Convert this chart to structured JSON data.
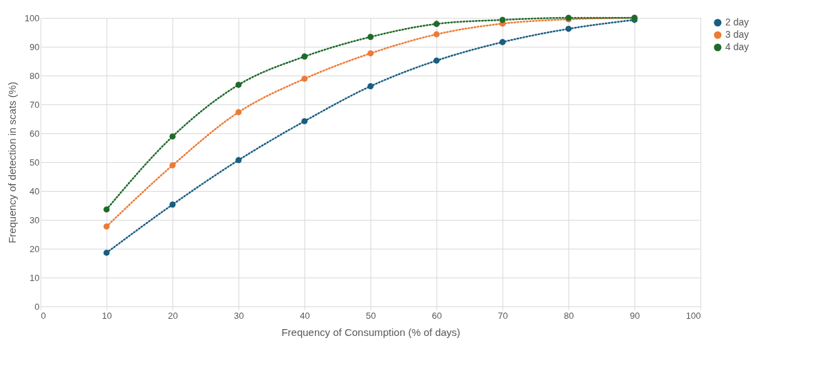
{
  "chart_data": {
    "type": "line",
    "xlabel": "Frequency of Consumption (% of days)",
    "ylabel": "Frequency of detection in scats (%)",
    "x": [
      10,
      20,
      30,
      40,
      50,
      60,
      70,
      80,
      90
    ],
    "series": [
      {
        "name": "2 day",
        "color": "#1a5e82",
        "values": [
          18.6,
          35.3,
          50.7,
          64.2,
          76.3,
          85.2,
          91.6,
          96.2,
          99.3
        ]
      },
      {
        "name": "3 day",
        "color": "#ed7a35",
        "values": [
          27.7,
          48.9,
          67.3,
          78.9,
          87.7,
          94.3,
          98,
          99.5,
          100
        ]
      },
      {
        "name": "4 day",
        "color": "#1e6b2a",
        "values": [
          33.6,
          58.9,
          76.8,
          86.6,
          93.4,
          97.9,
          99.3,
          100,
          100
        ]
      }
    ],
    "xlim": [
      0,
      100
    ],
    "xticks": [
      0,
      10,
      20,
      30,
      40,
      50,
      60,
      70,
      80,
      90,
      100
    ],
    "ylim": [
      0,
      100
    ],
    "yticks": [
      0,
      10,
      20,
      30,
      40,
      50,
      60,
      70,
      80,
      90,
      100
    ],
    "grid": true,
    "legend": "right",
    "marker": "circle",
    "line_style": "dotted"
  }
}
